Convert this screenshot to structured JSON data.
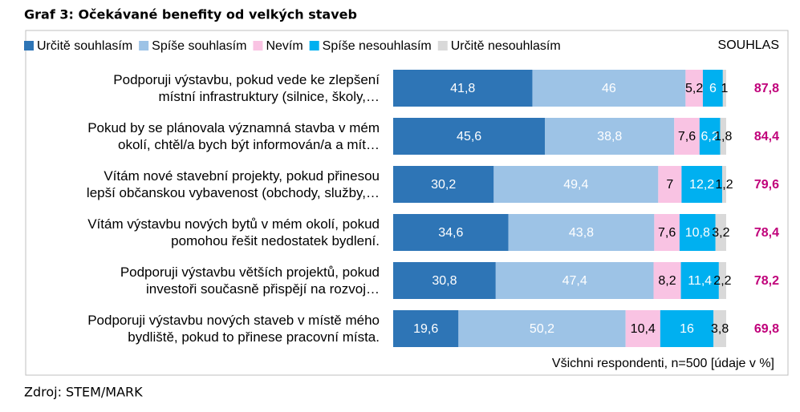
{
  "chart_data": {
    "type": "stacked-bar-horizontal",
    "title": "Graf 3: Očekávané benefity od velkých staveb",
    "categories": [
      "Podporuji výstavbu, pokud vede ke zlepšení\nmístní infrastruktury (silnice, školy,…",
      "Pokud by se plánovala významná stavba v mém\nokolí, chtěl/a bych být informován/a a mít…",
      "Vítám nové stavební projekty, pokud přinesou\nlepší občanskou vybavenost (obchody, služby,…",
      "Vítám výstavbu nových bytů v mém okolí, pokud\npomohou řešit nedostatek bydlení.",
      "Podporuji výstavbu větších projektů, pokud\ninvestoři současně přispějí na rozvoj…",
      "Podporuji výstavbu nových staveb v místě mého\nbydliště, pokud to přinese pracovní místa."
    ],
    "series": [
      {
        "name": "Určitě souhlasím",
        "color": "#2e75b6",
        "values": [
          41.8,
          45.6,
          30.2,
          34.6,
          30.8,
          19.6
        ],
        "value_labels": [
          "41,8",
          "45,6",
          "30,2",
          "34,6",
          "30,8",
          "19,6"
        ]
      },
      {
        "name": "Spíše souhlasím",
        "color": "#9dc3e6",
        "values": [
          46,
          38.8,
          49.4,
          43.8,
          47.4,
          50.2
        ],
        "value_labels": [
          "46",
          "38,8",
          "49,4",
          "43,8",
          "47,4",
          "50,2"
        ]
      },
      {
        "name": "Nevím",
        "color": "#f9c3e3",
        "values": [
          5.2,
          7.6,
          7,
          7.6,
          8.2,
          10.4
        ],
        "value_labels": [
          "5,2",
          "7,6",
          "7",
          "7,6",
          "8,2",
          "10,4"
        ]
      },
      {
        "name": "Spíše nesouhlasím",
        "color": "#00b0f0",
        "values": [
          6,
          6.2,
          12.2,
          10.8,
          11.4,
          16
        ],
        "value_labels": [
          "6",
          "6,2",
          "12,2",
          "10,8",
          "11,4",
          "16"
        ]
      },
      {
        "name": "Určitě nesouhlasím",
        "color": "#d9d9d9",
        "values": [
          1,
          1.8,
          1.2,
          3.2,
          2.2,
          3.8
        ],
        "value_labels": [
          "1",
          "1,8",
          "1,2",
          "3,2",
          "2,2",
          "3,8"
        ]
      }
    ],
    "agree_total": {
      "title": "SOUHLAS",
      "color": "#c0007a",
      "values": [
        87.8,
        84.4,
        79.6,
        78.4,
        78.2,
        69.8
      ],
      "value_labels": [
        "87,8",
        "84,4",
        "79,6",
        "78,4",
        "78,2",
        "69,8"
      ]
    },
    "xlim": [
      0,
      100
    ],
    "note": "Všichni respondenti, n=500 [údaje v %]",
    "source": "Zdroj: STEM/MARK"
  }
}
